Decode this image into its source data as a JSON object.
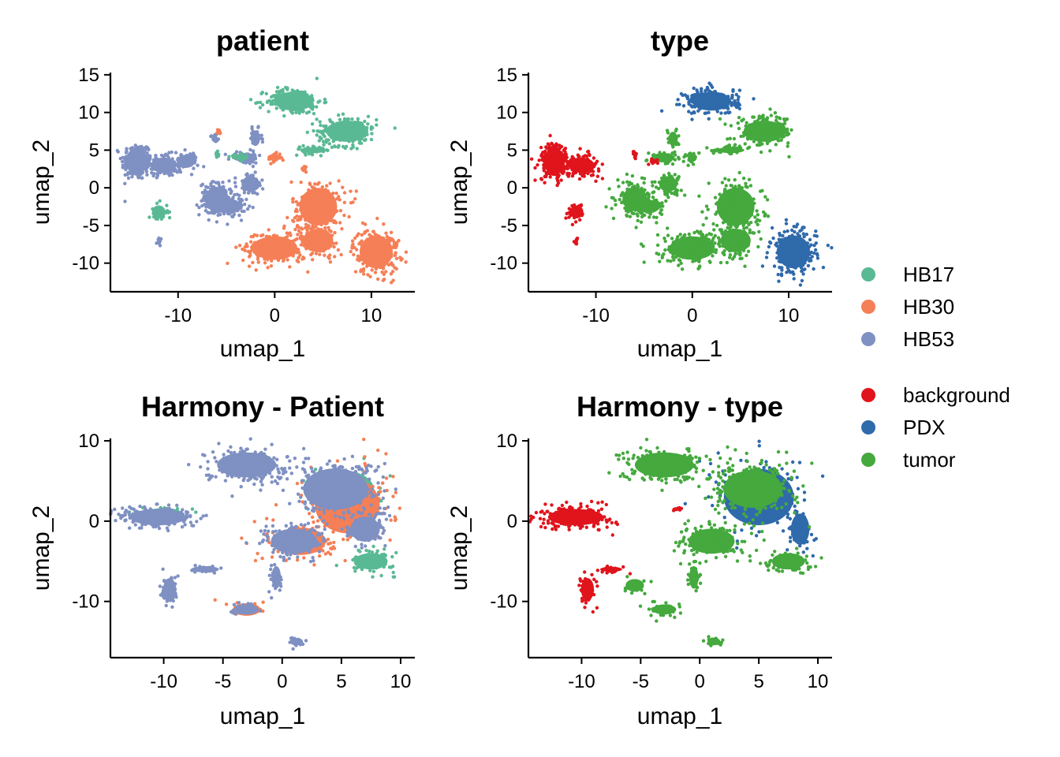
{
  "colors": {
    "HB17": "#5ab995",
    "HB30": "#f57f56",
    "HB53": "#7f90c2",
    "background": "#e0141c",
    "PDX": "#2f6aab",
    "tumor": "#45a93e"
  },
  "legend": {
    "groups": [
      {
        "items": [
          {
            "label": "HB17",
            "color_key": "HB17"
          },
          {
            "label": "HB30",
            "color_key": "HB30"
          },
          {
            "label": "HB53",
            "color_key": "HB53"
          }
        ]
      },
      {
        "items": [
          {
            "label": "background",
            "color_key": "background"
          },
          {
            "label": "PDX",
            "color_key": "PDX"
          },
          {
            "label": "tumor",
            "color_key": "tumor"
          }
        ]
      }
    ]
  },
  "chart_data": [
    {
      "type": "scatter",
      "title": "patient",
      "xlabel": "umap_1",
      "ylabel": "umap_2",
      "xlim": [
        -17,
        14.5
      ],
      "ylim": [
        -13.8,
        15.3
      ],
      "xticks": [
        -10,
        0,
        10
      ],
      "xtick_labels": [
        "-10",
        "0",
        "10"
      ],
      "yticks": [
        -10,
        -5,
        0,
        5,
        10,
        15
      ],
      "ytick_labels": [
        "-10",
        "-5",
        "0",
        "5",
        "10",
        "15"
      ],
      "series": [
        {
          "name": "HB53",
          "color_key": "HB53",
          "clusters": [
            {
              "cx": -14.3,
              "cy": 3.5,
              "rx": 1.4,
              "ry": 2.3,
              "n": 220
            },
            {
              "cx": -11.5,
              "cy": 3.0,
              "rx": 1.7,
              "ry": 1.3,
              "n": 140
            },
            {
              "cx": -9.2,
              "cy": 3.5,
              "rx": 1.2,
              "ry": 1.1,
              "n": 70
            },
            {
              "cx": -6.0,
              "cy": -1.5,
              "rx": 1.6,
              "ry": 2.0,
              "n": 170
            },
            {
              "cx": -4.5,
              "cy": -2.5,
              "rx": 1.4,
              "ry": 1.1,
              "n": 90
            },
            {
              "cx": -2.5,
              "cy": 0.5,
              "rx": 1.2,
              "ry": 1.3,
              "n": 80
            },
            {
              "cx": -2.0,
              "cy": 6.5,
              "rx": 0.6,
              "ry": 1.2,
              "n": 35
            },
            {
              "cx": -3.0,
              "cy": 4.0,
              "rx": 1.5,
              "ry": 0.8,
              "n": 50
            },
            {
              "cx": -6.2,
              "cy": 6.5,
              "rx": 0.4,
              "ry": 0.6,
              "n": 12
            },
            {
              "cx": -12.0,
              "cy": -7.0,
              "rx": 0.2,
              "ry": 0.6,
              "n": 10
            }
          ]
        },
        {
          "name": "HB17",
          "color_key": "HB17",
          "clusters": [
            {
              "cx": 2.0,
              "cy": 11.5,
              "rx": 2.6,
              "ry": 1.6,
              "n": 200
            },
            {
              "cx": 7.5,
              "cy": 7.5,
              "rx": 2.8,
              "ry": 1.8,
              "n": 210
            },
            {
              "cx": 4.0,
              "cy": 5.0,
              "rx": 1.8,
              "ry": 0.5,
              "n": 40
            },
            {
              "cx": -12.0,
              "cy": -3.2,
              "rx": 0.9,
              "ry": 1.1,
              "n": 40
            },
            {
              "cx": -3.5,
              "cy": 4.0,
              "rx": 1.0,
              "ry": 0.4,
              "n": 25
            },
            {
              "cx": -6.0,
              "cy": 4.5,
              "rx": 0.3,
              "ry": 0.4,
              "n": 8
            }
          ]
        },
        {
          "name": "HB30",
          "color_key": "HB30",
          "clusters": [
            {
              "cx": 0.0,
              "cy": -8.0,
              "rx": 3.0,
              "ry": 2.0,
              "n": 240
            },
            {
              "cx": 10.5,
              "cy": -8.5,
              "rx": 2.2,
              "ry": 2.8,
              "n": 240
            },
            {
              "cx": 4.5,
              "cy": -2.5,
              "rx": 2.5,
              "ry": 3.2,
              "n": 220
            },
            {
              "cx": 4.5,
              "cy": -7.0,
              "rx": 2.0,
              "ry": 2.0,
              "n": 120
            },
            {
              "cx": 0.0,
              "cy": 4.0,
              "rx": 0.6,
              "ry": 0.7,
              "n": 25
            },
            {
              "cx": 3.0,
              "cy": 2.5,
              "rx": 0.4,
              "ry": 0.4,
              "n": 12
            },
            {
              "cx": -5.8,
              "cy": 7.5,
              "rx": 0.3,
              "ry": 0.4,
              "n": 8
            }
          ]
        }
      ]
    },
    {
      "type": "scatter",
      "title": "type",
      "xlabel": "umap_1",
      "ylabel": "umap_2",
      "xlim": [
        -17,
        14.5
      ],
      "ylim": [
        -13.8,
        15.3
      ],
      "xticks": [
        -10,
        0,
        10
      ],
      "xtick_labels": [
        "-10",
        "0",
        "10"
      ],
      "yticks": [
        -10,
        -5,
        0,
        5,
        10,
        15
      ],
      "ytick_labels": [
        "-10",
        "-5",
        "0",
        "5",
        "10",
        "15"
      ],
      "series": [
        {
          "name": "tumor",
          "color_key": "tumor",
          "clusters": [
            {
              "cx": 0.0,
              "cy": -8.0,
              "rx": 3.0,
              "ry": 2.0,
              "n": 240
            },
            {
              "cx": 4.5,
              "cy": -2.5,
              "rx": 2.5,
              "ry": 3.2,
              "n": 220
            },
            {
              "cx": 4.5,
              "cy": -7.0,
              "rx": 2.0,
              "ry": 2.0,
              "n": 120
            },
            {
              "cx": 7.5,
              "cy": 7.5,
              "rx": 2.8,
              "ry": 1.8,
              "n": 210
            },
            {
              "cx": 4.0,
              "cy": 5.0,
              "rx": 1.8,
              "ry": 0.5,
              "n": 40
            },
            {
              "cx": -6.0,
              "cy": -1.5,
              "rx": 1.6,
              "ry": 2.0,
              "n": 170
            },
            {
              "cx": -4.5,
              "cy": -2.5,
              "rx": 1.4,
              "ry": 1.1,
              "n": 90
            },
            {
              "cx": -2.5,
              "cy": 0.5,
              "rx": 1.2,
              "ry": 1.3,
              "n": 80
            },
            {
              "cx": -2.0,
              "cy": 6.5,
              "rx": 0.6,
              "ry": 1.2,
              "n": 35
            },
            {
              "cx": -3.0,
              "cy": 4.0,
              "rx": 1.5,
              "ry": 0.8,
              "n": 50
            },
            {
              "cx": 0.0,
              "cy": 4.0,
              "rx": 0.6,
              "ry": 0.7,
              "n": 25
            }
          ]
        },
        {
          "name": "PDX",
          "color_key": "PDX",
          "clusters": [
            {
              "cx": 2.0,
              "cy": 11.5,
              "rx": 2.6,
              "ry": 1.6,
              "n": 200
            },
            {
              "cx": 10.5,
              "cy": -8.5,
              "rx": 2.2,
              "ry": 2.8,
              "n": 240
            }
          ]
        },
        {
          "name": "background",
          "color_key": "background",
          "clusters": [
            {
              "cx": -14.3,
              "cy": 3.5,
              "rx": 1.4,
              "ry": 2.3,
              "n": 220
            },
            {
              "cx": -11.5,
              "cy": 3.0,
              "rx": 1.7,
              "ry": 1.3,
              "n": 140
            },
            {
              "cx": -12.0,
              "cy": -3.2,
              "rx": 0.9,
              "ry": 1.1,
              "n": 40
            },
            {
              "cx": -12.0,
              "cy": -7.0,
              "rx": 0.2,
              "ry": 0.6,
              "n": 10
            },
            {
              "cx": -6.0,
              "cy": 4.5,
              "rx": 0.3,
              "ry": 0.4,
              "n": 8
            },
            {
              "cx": -4.0,
              "cy": 3.5,
              "rx": 0.5,
              "ry": 0.4,
              "n": 10
            }
          ]
        }
      ]
    },
    {
      "type": "scatter",
      "title": "Harmony - Patient",
      "xlabel": "umap_1",
      "ylabel": "umap_2",
      "xlim": [
        -14.5,
        11.2
      ],
      "ylim": [
        -17,
        10.3
      ],
      "xticks": [
        -10,
        -5,
        0,
        5,
        10
      ],
      "xtick_labels": [
        "-10",
        "-5",
        "0",
        "5",
        "10"
      ],
      "yticks": [
        -10,
        0,
        10
      ],
      "ytick_labels": [
        "-10",
        "0",
        "10"
      ],
      "series": [
        {
          "name": "HB17",
          "color_key": "HB17",
          "clusters": [
            {
              "cx": 7.5,
              "cy": -5.0,
              "rx": 1.8,
              "ry": 1.3,
              "n": 80
            },
            {
              "cx": -10.0,
              "cy": 1.0,
              "rx": 2.0,
              "ry": 0.8,
              "n": 30
            },
            {
              "cx": 5.0,
              "cy": 4.0,
              "rx": 3.5,
              "ry": 3.0,
              "n": 40
            }
          ]
        },
        {
          "name": "HB30",
          "color_key": "HB30",
          "clusters": [
            {
              "cx": 5.5,
              "cy": 2.0,
              "rx": 3.5,
              "ry": 4.5,
              "n": 200
            },
            {
              "cx": 1.5,
              "cy": -2.5,
              "rx": 2.8,
              "ry": 2.2,
              "n": 120
            },
            {
              "cx": -3.0,
              "cy": -11.0,
              "rx": 1.5,
              "ry": 1.0,
              "n": 20
            }
          ]
        },
        {
          "name": "HB53",
          "color_key": "HB53",
          "clusters": [
            {
              "cx": -10.5,
              "cy": 0.5,
              "rx": 3.0,
              "ry": 1.3,
              "n": 230
            },
            {
              "cx": -3.0,
              "cy": 7.0,
              "rx": 3.2,
              "ry": 2.0,
              "n": 200
            },
            {
              "cx": 4.5,
              "cy": 4.0,
              "rx": 3.5,
              "ry": 3.3,
              "n": 300
            },
            {
              "cx": 1.0,
              "cy": -2.5,
              "rx": 2.5,
              "ry": 2.0,
              "n": 150
            },
            {
              "cx": 7.0,
              "cy": -1.0,
              "rx": 1.6,
              "ry": 2.0,
              "n": 90
            },
            {
              "cx": -9.5,
              "cy": -8.5,
              "rx": 0.7,
              "ry": 1.8,
              "n": 60
            },
            {
              "cx": -3.0,
              "cy": -11.0,
              "rx": 1.3,
              "ry": 0.8,
              "n": 40
            },
            {
              "cx": -0.5,
              "cy": -7.0,
              "rx": 0.5,
              "ry": 1.8,
              "n": 35
            },
            {
              "cx": 1.2,
              "cy": -15.0,
              "rx": 0.7,
              "ry": 0.6,
              "n": 20
            },
            {
              "cx": -6.5,
              "cy": -6.0,
              "rx": 1.5,
              "ry": 0.5,
              "n": 25
            }
          ]
        }
      ]
    },
    {
      "type": "scatter",
      "title": "Harmony - type",
      "xlabel": "umap_1",
      "ylabel": "umap_2",
      "xlim": [
        -14.5,
        11.2
      ],
      "ylim": [
        -17,
        10.3
      ],
      "xticks": [
        -10,
        -5,
        0,
        5,
        10
      ],
      "xtick_labels": [
        "-10",
        "-5",
        "0",
        "5",
        "10"
      ],
      "yticks": [
        -10,
        0,
        10
      ],
      "ytick_labels": [
        "-10",
        "0",
        "10"
      ],
      "series": [
        {
          "name": "PDX",
          "color_key": "PDX",
          "clusters": [
            {
              "cx": 5.0,
              "cy": 3.0,
              "rx": 3.8,
              "ry": 4.5,
              "n": 160
            },
            {
              "cx": 8.5,
              "cy": -1.0,
              "rx": 1.0,
              "ry": 2.5,
              "n": 60
            }
          ]
        },
        {
          "name": "tumor",
          "color_key": "tumor",
          "clusters": [
            {
              "cx": -3.0,
              "cy": 7.0,
              "rx": 3.2,
              "ry": 2.0,
              "n": 200
            },
            {
              "cx": 4.5,
              "cy": 4.0,
              "rx": 3.2,
              "ry": 3.0,
              "n": 280
            },
            {
              "cx": 1.0,
              "cy": -2.5,
              "rx": 2.5,
              "ry": 2.0,
              "n": 150
            },
            {
              "cx": 7.5,
              "cy": -5.0,
              "rx": 1.8,
              "ry": 1.3,
              "n": 90
            },
            {
              "cx": -3.0,
              "cy": -11.0,
              "rx": 1.3,
              "ry": 0.8,
              "n": 40
            },
            {
              "cx": -0.5,
              "cy": -7.0,
              "rx": 0.5,
              "ry": 1.8,
              "n": 35
            },
            {
              "cx": 1.2,
              "cy": -15.0,
              "rx": 0.7,
              "ry": 0.6,
              "n": 20
            },
            {
              "cx": -5.5,
              "cy": -8.0,
              "rx": 1.0,
              "ry": 1.0,
              "n": 25
            }
          ]
        },
        {
          "name": "background",
          "color_key": "background",
          "clusters": [
            {
              "cx": -10.5,
              "cy": 0.5,
              "rx": 3.0,
              "ry": 1.3,
              "n": 230
            },
            {
              "cx": -9.5,
              "cy": -8.5,
              "rx": 0.7,
              "ry": 1.8,
              "n": 60
            },
            {
              "cx": -7.5,
              "cy": -6.0,
              "rx": 1.2,
              "ry": 0.4,
              "n": 20
            },
            {
              "cx": -2.0,
              "cy": 1.5,
              "rx": 0.4,
              "ry": 0.3,
              "n": 8
            }
          ]
        }
      ]
    }
  ]
}
